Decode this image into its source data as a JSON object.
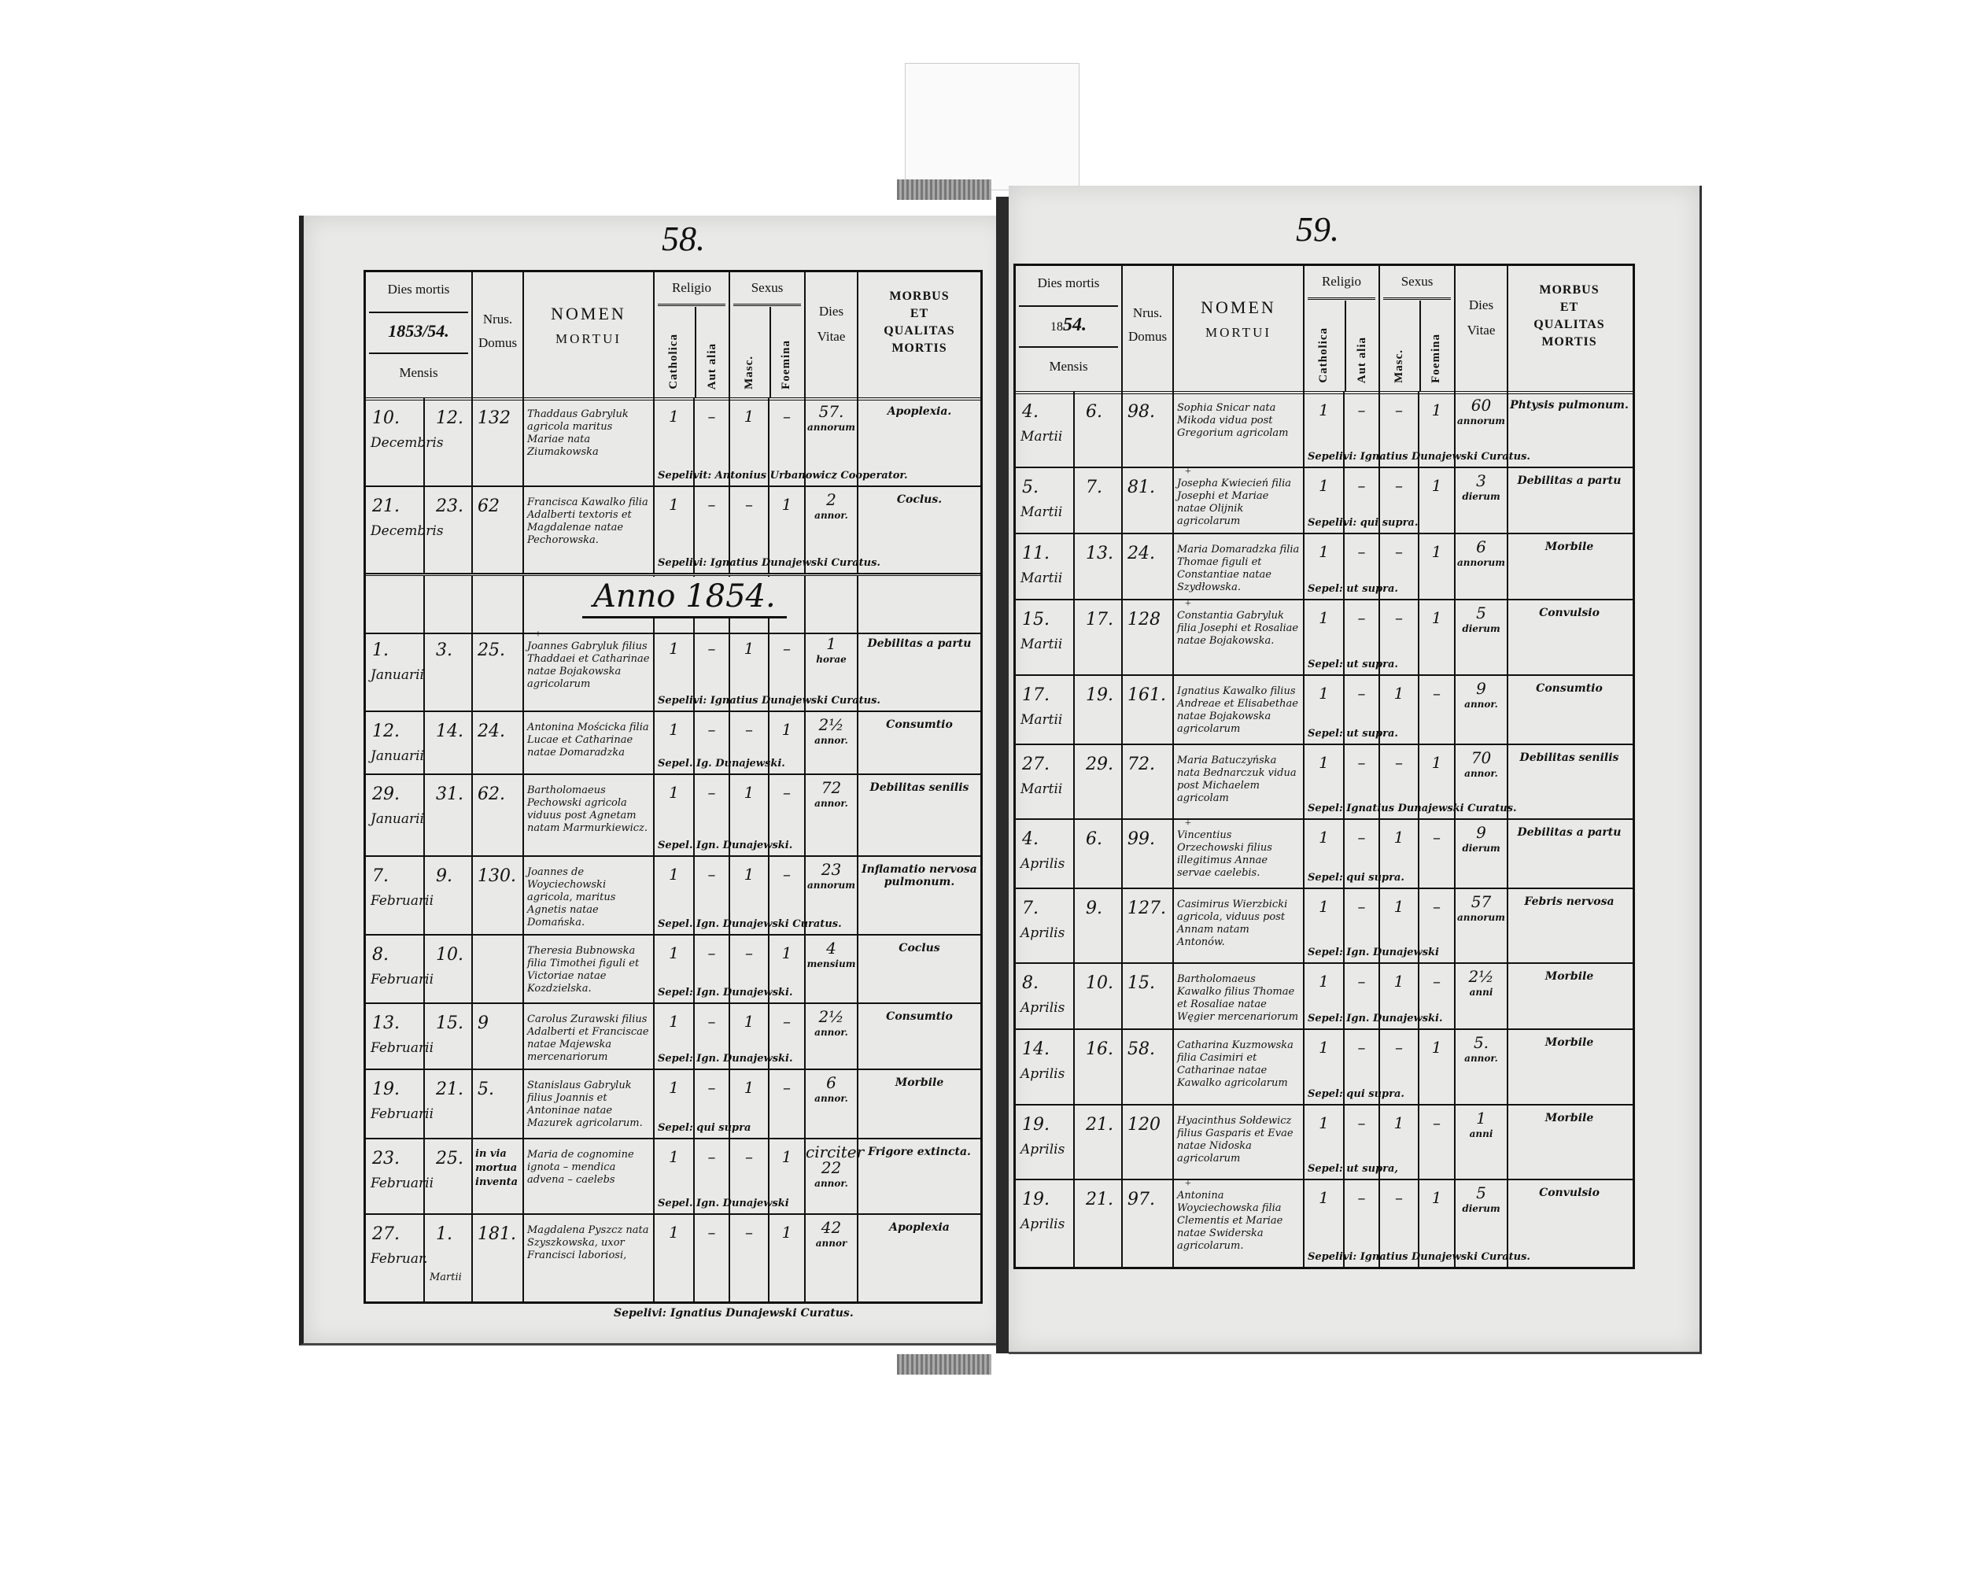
{
  "colors": {
    "ink": "#111111",
    "paper": "#e9e9e7"
  },
  "header": {
    "dies_mortis": "Dies mortis",
    "mensis": "Mensis",
    "nrus": "Nrus.",
    "domus": "Domus",
    "nomen": "NOMEN",
    "mortui": "MORTUI",
    "religio": "Religio",
    "catholica": "Catholica",
    "aut_alia": "Aut alia",
    "sexus": "Sexus",
    "masc": "Masc.",
    "foemina": "Foemina",
    "dies": "Dies",
    "vitae": "Vitae",
    "morbus": [
      "MORBUS",
      "ET",
      "QUALITAS",
      "MORTIS"
    ]
  },
  "left": {
    "page_number": "58.",
    "year": "1853/54.",
    "year_prefix": "18",
    "year_suffix": "53/54.",
    "banner": "Anno 1854.",
    "footer_note": "Sepelivi: Ignatius Dunajewski Curatus.",
    "entries": [
      {
        "day": "10.",
        "burial": "12.",
        "month": "Decembris",
        "house": "132",
        "name": "Thaddaus Gabryluk agricola maritus Mariae nata Ziumakowska",
        "cath": "1",
        "alia": "–",
        "masc": "1",
        "foem": "–",
        "age": "57.",
        "unit": "annorum",
        "morbus": "Apoplexia.",
        "sep": "Sepelivit: Antonius Urbanowicz Cooperator."
      },
      {
        "day": "21.",
        "burial": "23.",
        "month": "Decembris",
        "house": "62",
        "name": "Francisca Kawalko filia Adalberti textoris et Magdalenae natae Pechorowska.",
        "cath": "1",
        "alia": "–",
        "masc": "–",
        "foem": "1",
        "age": "2",
        "unit": "annor.",
        "morbus": "Coclus.",
        "sep": "Sepelivi: Ignatius Dunajewski Curatus."
      },
      {
        "day": "1.",
        "burial": "3.",
        "month": "Januarii",
        "house": "25.",
        "cross": "+",
        "name": "Joannes Gabryluk filius Thaddaei et Catharinae natae Bojakowska agricolarum",
        "cath": "1",
        "alia": "–",
        "masc": "1",
        "foem": "–",
        "age": "1",
        "unit": "horae",
        "morbus": "Debilitas a partu",
        "sep": "Sepelivi: Ignatius Dunajewski Curatus."
      },
      {
        "day": "12.",
        "burial": "14.",
        "month": "Januarii",
        "house": "24.",
        "name": "Antonina Mościcka filia Lucae et Catharinae natae Domaradzka",
        "cath": "1",
        "alia": "–",
        "masc": "–",
        "foem": "1",
        "age": "2½",
        "unit": "annor.",
        "morbus": "Consumtio",
        "sep": "Sepel. Ig. Dunajewski."
      },
      {
        "day": "29.",
        "burial": "31.",
        "month": "Januarii",
        "house": "62.",
        "name": "Bartholomaeus Pechowski agricola viduus post Agnetam natam Marmurkiewicz.",
        "cath": "1",
        "alia": "–",
        "masc": "1",
        "foem": "–",
        "age": "72",
        "unit": "annor.",
        "morbus": "Debilitas senilis",
        "sep": "Sepel. Ign. Dunajewski."
      },
      {
        "day": "7.",
        "burial": "9.",
        "month": "Februarii",
        "house": "130.",
        "name": "Joannes de Woyciechowski agricola, maritus Agnetis natae Domańska.",
        "cath": "1",
        "alia": "–",
        "masc": "1",
        "foem": "–",
        "age": "23",
        "unit": "annorum",
        "morbus": "Inflamatio nervosa pulmonum.",
        "sep": "Sepel. Ign. Dunajewski Curatus."
      },
      {
        "day": "8.",
        "burial": "10.",
        "month": "Februarii",
        "house": "",
        "name": "Theresia Bubnowska filia Timothei figuli et Victoriae natae Kozdzielska.",
        "cath": "1",
        "alia": "–",
        "masc": "–",
        "foem": "1",
        "age": "4",
        "unit": "mensium",
        "morbus": "Coclus",
        "sep": "Sepel: Ign. Dunajewski."
      },
      {
        "day": "13.",
        "burial": "15.",
        "month": "Februarii",
        "house": "9",
        "name": "Carolus Zurawski filius Adalberti et Franciscae natae Majewska mercenariorum",
        "cath": "1",
        "alia": "–",
        "masc": "1",
        "foem": "–",
        "age": "2½",
        "unit": "annor.",
        "morbus": "Consumtio",
        "sep": "Sepel: Ign. Dunajewski."
      },
      {
        "day": "19.",
        "burial": "21.",
        "month": "Februarii",
        "house": "5.",
        "name": "Stanislaus Gabryluk filius Joannis et Antoninae natae Mazurek agricolarum.",
        "cath": "1",
        "alia": "–",
        "masc": "1",
        "foem": "–",
        "age": "6",
        "unit": "annor.",
        "morbus": "Morbile",
        "sep": "Sepel: qui supra"
      },
      {
        "day": "23.",
        "burial": "25.",
        "month": "Februarii",
        "house": "in via mortua inventa",
        "name": "Maria de cognomine ignota – mendica advena – caelebs",
        "cath": "1",
        "alia": "–",
        "masc": "–",
        "foem": "1",
        "age": "circiter 22",
        "unit": "annor.",
        "morbus": "Frigore extincta.",
        "sep": "Sepel. Ign. Dunajewski"
      },
      {
        "day": "27.",
        "burial": "1.",
        "month": "Februar.",
        "month2": "Martii",
        "house": "181.",
        "name": "Magdalena Pyszcz nata Szyszkowska, uxor Francisci laboriosi,",
        "cath": "1",
        "alia": "–",
        "masc": "–",
        "foem": "1",
        "age": "42",
        "unit": "annor",
        "morbus": "Apoplexia",
        "sep": ""
      }
    ]
  },
  "right": {
    "page_number": "59.",
    "year_prefix": "18",
    "year_suffix": "54.",
    "entries": [
      {
        "day": "4.",
        "burial": "6.",
        "month": "Martii",
        "house": "98.",
        "name": "Sophia Snicar nata Mikoda vidua post Gregorium agricolam",
        "cath": "1",
        "alia": "–",
        "masc": "–",
        "foem": "1",
        "age": "60",
        "unit": "annorum",
        "morbus": "Phtysis pulmonum.",
        "sep": "Sepelivi: Ignatius Dunajewski Curatus."
      },
      {
        "day": "5.",
        "burial": "7.",
        "month": "Martii",
        "house": "81.",
        "cross": "+",
        "name": "Josepha Kwiecień filia Josephi et Mariae natae Olijnik agricolarum",
        "cath": "1",
        "alia": "–",
        "masc": "–",
        "foem": "1",
        "age": "3",
        "unit": "dierum",
        "morbus": "Debilitas a partu",
        "sep": "Sepelivi: qui supra."
      },
      {
        "day": "11.",
        "burial": "13.",
        "month": "Martii",
        "house": "24.",
        "name": "Maria Domaradzka filia Thomae figuli et Constantiae natae Szydłowska.",
        "cath": "1",
        "alia": "–",
        "masc": "–",
        "foem": "1",
        "age": "6",
        "unit": "annorum",
        "morbus": "Morbile",
        "sep": "Sepel: ut supra."
      },
      {
        "day": "15.",
        "burial": "17.",
        "month": "Martii",
        "house": "128",
        "cross": "+",
        "name": "Constantia Gabryluk filia Josephi et Rosaliae natae Bojakowska.",
        "cath": "1",
        "alia": "–",
        "masc": "–",
        "foem": "1",
        "age": "5",
        "unit": "dierum",
        "morbus": "Convulsio",
        "sep": "Sepel: ut supra."
      },
      {
        "day": "17.",
        "burial": "19.",
        "month": "Martii",
        "house": "161.",
        "name": "Ignatius Kawalko filius Andreae et Elisabethae natae Bojakowska agricolarum",
        "cath": "1",
        "alia": "–",
        "masc": "1",
        "foem": "–",
        "age": "9",
        "unit": "annor.",
        "morbus": "Consumtio",
        "sep": "Sepel: ut supra."
      },
      {
        "day": "27.",
        "burial": "29.",
        "month": "Martii",
        "house": "72.",
        "name": "Maria Batuczyńska nata Bednarczuk vidua post Michaelem agricolam",
        "cath": "1",
        "alia": "–",
        "masc": "–",
        "foem": "1",
        "age": "70",
        "unit": "annor.",
        "morbus": "Debilitas senilis",
        "sep": "Sepel: Ignatius Dunajewski Curatus."
      },
      {
        "day": "4.",
        "burial": "6.",
        "month": "Aprilis",
        "house": "99.",
        "cross": "+",
        "name": "Vincentius Orzechowski filius illegitimus Annae servae caelebis.",
        "cath": "1",
        "alia": "–",
        "masc": "1",
        "foem": "–",
        "age": "9",
        "unit": "dierum",
        "morbus": "Debilitas a partu",
        "sep": "Sepel: qui supra."
      },
      {
        "day": "7.",
        "burial": "9.",
        "month": "Aprilis",
        "house": "127.",
        "name": "Casimirus Wierzbicki agricola, viduus post Annam natam Antonów.",
        "cath": "1",
        "alia": "–",
        "masc": "1",
        "foem": "–",
        "age": "57",
        "unit": "annorum",
        "morbus": "Febris nervosa",
        "sep": "Sepel: Ign. Dunajewski"
      },
      {
        "day": "8.",
        "burial": "10.",
        "month": "Aprilis",
        "house": "15.",
        "name": "Bartholomaeus Kawalko filius Thomae et Rosaliae natae Węgier mercenariorum",
        "cath": "1",
        "alia": "–",
        "masc": "1",
        "foem": "–",
        "age": "2½",
        "unit": "anni",
        "morbus": "Morbile",
        "sep": "Sepel: Ign. Dunajewski."
      },
      {
        "day": "14.",
        "burial": "16.",
        "month": "Aprilis",
        "house": "58.",
        "name": "Catharina Kuzmowska filia Casimiri et Catharinae natae Kawalko agricolarum",
        "cath": "1",
        "alia": "–",
        "masc": "–",
        "foem": "1",
        "age": "5.",
        "unit": "annor.",
        "morbus": "Morbile",
        "sep": "Sepel: qui supra."
      },
      {
        "day": "19.",
        "burial": "21.",
        "month": "Aprilis",
        "house": "120",
        "name": "Hyacinthus Sołdewicz filius Gasparis et Evae natae Nidoska agricolarum",
        "cath": "1",
        "alia": "–",
        "masc": "1",
        "foem": "–",
        "age": "1",
        "unit": "anni",
        "morbus": "Morbile",
        "sep": "Sepel: ut supra,"
      },
      {
        "day": "19.",
        "burial": "21.",
        "month": "Aprilis",
        "house": "97.",
        "cross": "+",
        "name": "Antonina Woyciechowska filia Clementis et Mariae natae Swiderska agricolarum.",
        "cath": "1",
        "alia": "–",
        "masc": "–",
        "foem": "1",
        "age": "5",
        "unit": "dierum",
        "morbus": "Convulsio",
        "sep": "Sepelivi: Ignatius Dunajewski Curatus."
      }
    ]
  }
}
